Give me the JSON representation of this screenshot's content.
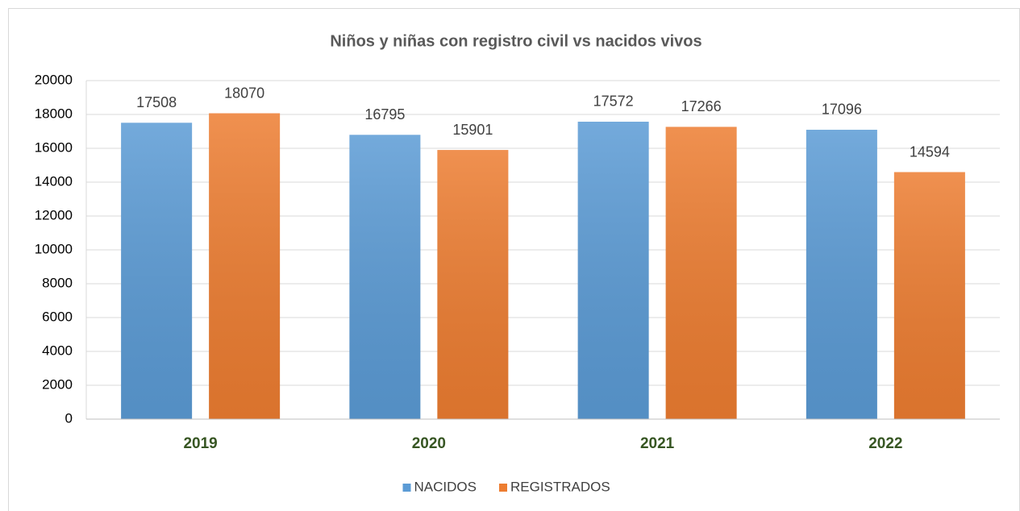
{
  "chart_data": {
    "type": "bar",
    "title": "Niños y niñas con registro civil vs nacidos vivos",
    "categories": [
      "2019",
      "2020",
      "2021",
      "2022"
    ],
    "series": [
      {
        "name": "NACIDOS",
        "color": "#5b9bd5",
        "values": [
          17508,
          16795,
          17572,
          17096
        ]
      },
      {
        "name": "REGISTRADOS",
        "color": "#ed7d31",
        "values": [
          18070,
          15901,
          17266,
          14594
        ]
      }
    ],
    "ylim": [
      0,
      20000
    ],
    "yticks": [
      0,
      2000,
      4000,
      6000,
      8000,
      10000,
      12000,
      14000,
      16000,
      18000,
      20000
    ],
    "grid": true,
    "legend": "bottom"
  }
}
